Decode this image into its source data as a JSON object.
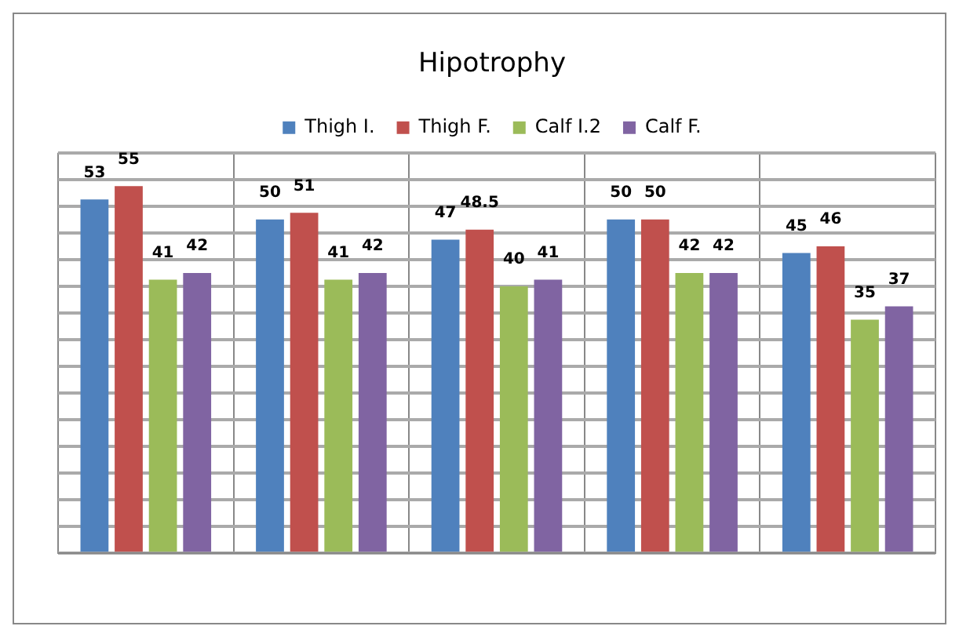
{
  "chart_data": {
    "type": "bar",
    "title": "Hipotrophy",
    "categories": [
      null,
      null,
      null,
      null,
      null
    ],
    "series": [
      {
        "name": "Thigh I.",
        "color": "#4f81bd",
        "values": [
          53,
          50,
          47,
          50,
          45
        ]
      },
      {
        "name": "Thigh F.",
        "color": "#c0504d",
        "values": [
          55,
          51,
          48.5,
          50,
          46
        ]
      },
      {
        "name": "Calf I.2",
        "color": "#9bbb59",
        "values": [
          41,
          41,
          40,
          42,
          35
        ]
      },
      {
        "name": "Calf F.",
        "color": "#8064a2",
        "values": [
          42,
          42,
          41,
          42,
          37
        ]
      }
    ],
    "ylim": [
      0,
      60
    ],
    "yticks": [
      {
        "value": 0,
        "label": null
      },
      {
        "value": 4,
        "label": null
      },
      {
        "value": 8,
        "label": null
      },
      {
        "value": 12,
        "label": null
      },
      {
        "value": 16,
        "label": null
      },
      {
        "value": 20,
        "label": null
      },
      {
        "value": 24,
        "label": null
      },
      {
        "value": 28,
        "label": null
      },
      {
        "value": 32,
        "label": null
      },
      {
        "value": 36,
        "label": null
      },
      {
        "value": 40,
        "label": null
      },
      {
        "value": 44,
        "label": null
      },
      {
        "value": 48,
        "label": null
      },
      {
        "value": 52,
        "label": null
      },
      {
        "value": 56,
        "label": null
      },
      {
        "value": 60,
        "label": null
      }
    ],
    "grid": true,
    "legend": "top",
    "data_labels": true
  }
}
